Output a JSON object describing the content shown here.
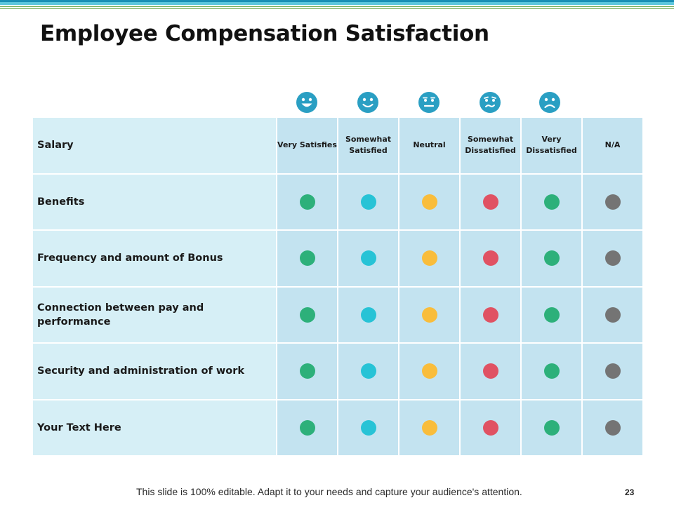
{
  "slide": {
    "title": "Employee Compensation Satisfaction",
    "footer": "This slide is 100% editable. Adapt it to your needs and capture your audience's attention.",
    "page_number": "23"
  },
  "colors": {
    "stripe_dark": "#1a8fb5",
    "stripe_light": "#5cc6dd",
    "stripe_thin": "#6aa84f",
    "label_bg": "#d6eff6",
    "cell_bg": "#c3e3f0",
    "face": "#2a9fc3"
  },
  "faces": [
    "grin-face-icon",
    "smile-face-icon",
    "neutral-face-icon",
    "confused-face-icon",
    "frown-face-icon"
  ],
  "table": {
    "header_label": "Salary",
    "columns": [
      "Very Satisfies",
      "Somewhat Satisfied",
      "Neutral",
      "Somewhat Dissatisfied",
      "Very Dissatisfied",
      "N/A"
    ],
    "dot_colors": [
      "#2db07a",
      "#27c3d6",
      "#f9bd3b",
      "#e05263",
      "#2db07a",
      "#747474"
    ],
    "rows": [
      "Benefits",
      "Frequency and amount of Bonus",
      "Connection between pay and performance",
      "Security and administration of work",
      "Your Text Here"
    ]
  }
}
